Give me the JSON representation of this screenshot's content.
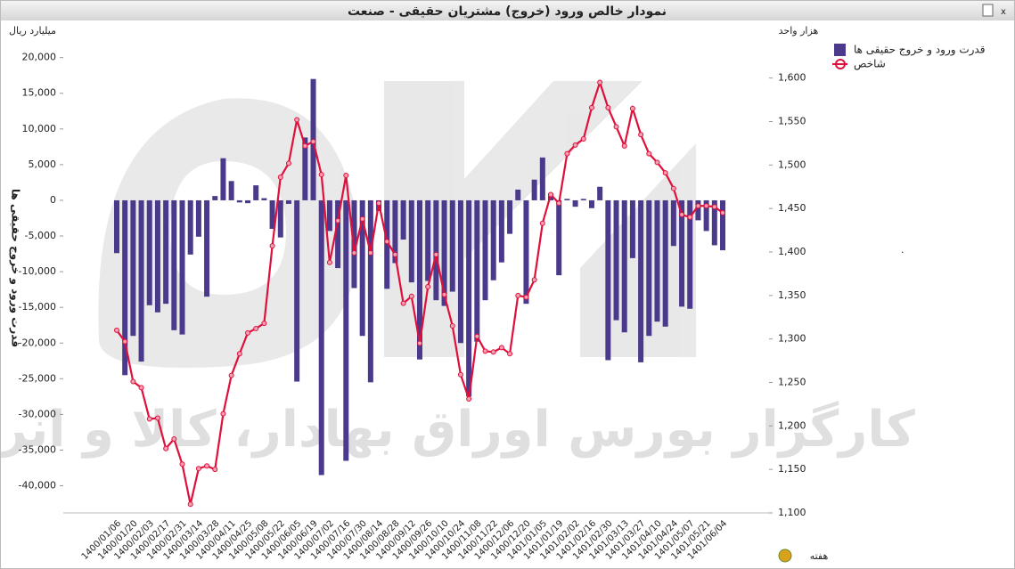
{
  "chart_data": {
    "type": "bar-line",
    "title": "نمودار خالص ورود (خروج) مشتریان حقیقی - صنعت",
    "y_unit": "میلیارد ریال",
    "y2_unit": "هزار واحد",
    "y_label": "قدرت ورود و خروج حقیقی ها",
    "x_label": "هفته",
    "watermark": "کارگزار بورس اوراق بهادار، کالا و انرژی",
    "categories": [
      "1400/01/06",
      null,
      "1400/01/20",
      null,
      "1400/02/03",
      null,
      "1400/02/17",
      null,
      "1400/02/31",
      null,
      "1400/03/14",
      null,
      "1400/03/28",
      null,
      "1400/04/11",
      null,
      "1400/04/25",
      null,
      "1400/05/08",
      null,
      "1400/05/22",
      null,
      "1400/06/05",
      null,
      "1400/06/19",
      null,
      "1400/07/02",
      null,
      "1400/07/16",
      null,
      "1400/07/30",
      null,
      "1400/08/14",
      null,
      "1400/08/28",
      null,
      "1400/09/12",
      null,
      "1400/09/26",
      null,
      "1400/10/10",
      null,
      "1400/10/24",
      null,
      "1400/11/08",
      null,
      "1400/11/22",
      null,
      "1400/12/06",
      null,
      "1400/12/20",
      null,
      "1401/01/05",
      null,
      "1401/01/19",
      null,
      "1401/02/02",
      null,
      "1401/02/16",
      null,
      "1401/02/30",
      null,
      "1401/03/13",
      null,
      "1401/03/27",
      null,
      "1401/04/10",
      null,
      "1401/04/24",
      null,
      "1401/05/07",
      null,
      "1401/05/21",
      null,
      "1401/06/04"
    ],
    "series": [
      {
        "name": "قدرت ورود و خروج حقیقی ها",
        "kind": "bar",
        "color": "#4b3a8c",
        "values": [
          -7400,
          -24500,
          -19000,
          -22600,
          -14700,
          -15700,
          -14500,
          -18200,
          -18800,
          -7600,
          -5100,
          -13500,
          600,
          5900,
          2700,
          -300,
          -400,
          2100,
          300,
          -4000,
          -5200,
          -500,
          -25400,
          8800,
          17000,
          -38500,
          -4300,
          -9500,
          -36500,
          -12300,
          -19000,
          -25500,
          -1500,
          -12400,
          -8800,
          -5500,
          -11500,
          -22300,
          -11300,
          -14000,
          -14800,
          -12800,
          -20000,
          -27500,
          -19800,
          -14000,
          -11200,
          -8700,
          -4700,
          1500,
          -14500,
          2900,
          6000,
          1000,
          -10500,
          200,
          -900,
          200,
          -1100,
          1900,
          -22400,
          -16800,
          -18500,
          -8100,
          -22700,
          -19000,
          -17000,
          -17700,
          -6400,
          -14900,
          -15200,
          -2800,
          -4300,
          -6300,
          -7000
        ]
      },
      {
        "name": "شاخص",
        "kind": "line",
        "axis": "y2",
        "color": "#e0103c",
        "values": [
          1310,
          1297,
          1251,
          1244,
          1208,
          1209,
          1174,
          1185,
          1156,
          1110,
          1151,
          1154,
          1150,
          1214,
          1258,
          1283,
          1307,
          1312,
          1318,
          1407,
          1486,
          1502,
          1552,
          1522,
          1527,
          1489,
          1388,
          1436,
          1488,
          1399,
          1438,
          1399,
          1456,
          1412,
          1397,
          1341,
          1349,
          1295,
          1360,
          1397,
          1351,
          1315,
          1259,
          1231,
          1303,
          1286,
          1285,
          1290,
          1283,
          1350,
          1348,
          1368,
          1433,
          1466,
          1456,
          1513,
          1523,
          1530,
          1566,
          1595,
          1566,
          1544,
          1522,
          1565,
          1535,
          1513,
          1503,
          1491,
          1473,
          1443,
          1440,
          1453,
          1453,
          1452,
          1445
        ]
      }
    ],
    "ylim": [
      -43800,
      24200
    ],
    "yticks": [
      {
        "value": 20000,
        "label": "20,000"
      },
      {
        "value": 15000,
        "label": "15,000"
      },
      {
        "value": 10000,
        "label": "10,000"
      },
      {
        "value": 5000,
        "label": "5,000"
      },
      0,
      {
        "value": -5000,
        "label": "-5,000"
      },
      {
        "value": -10000,
        "label": "-10,000"
      },
      {
        "value": -15000,
        "label": "-15,000"
      },
      {
        "value": -20000,
        "label": "-20,000"
      },
      {
        "value": -25000,
        "label": "-25,000"
      },
      {
        "value": -30000,
        "label": "-30,000"
      },
      {
        "value": -35000,
        "label": "-35,000"
      },
      {
        "value": -40000,
        "label": "-40,000"
      }
    ],
    "y2lim": [
      1100,
      1658
    ],
    "y2ticks": [
      {
        "value": 1100,
        "label": "1,100"
      },
      {
        "value": 1150,
        "label": "1,150"
      },
      {
        "value": 1200,
        "label": "1,200"
      },
      {
        "value": 1250,
        "label": "1,250"
      },
      {
        "value": 1300,
        "label": "1,300"
      },
      {
        "value": 1350,
        "label": "1,350"
      },
      {
        "value": 1400,
        "label": "1,400"
      },
      {
        "value": 1450,
        "label": "1,450"
      },
      {
        "value": 1500,
        "label": "1,500"
      },
      {
        "value": 1550,
        "label": "1,550"
      },
      {
        "value": 1600,
        "label": "1,600"
      }
    ],
    "legend": "top-right"
  }
}
